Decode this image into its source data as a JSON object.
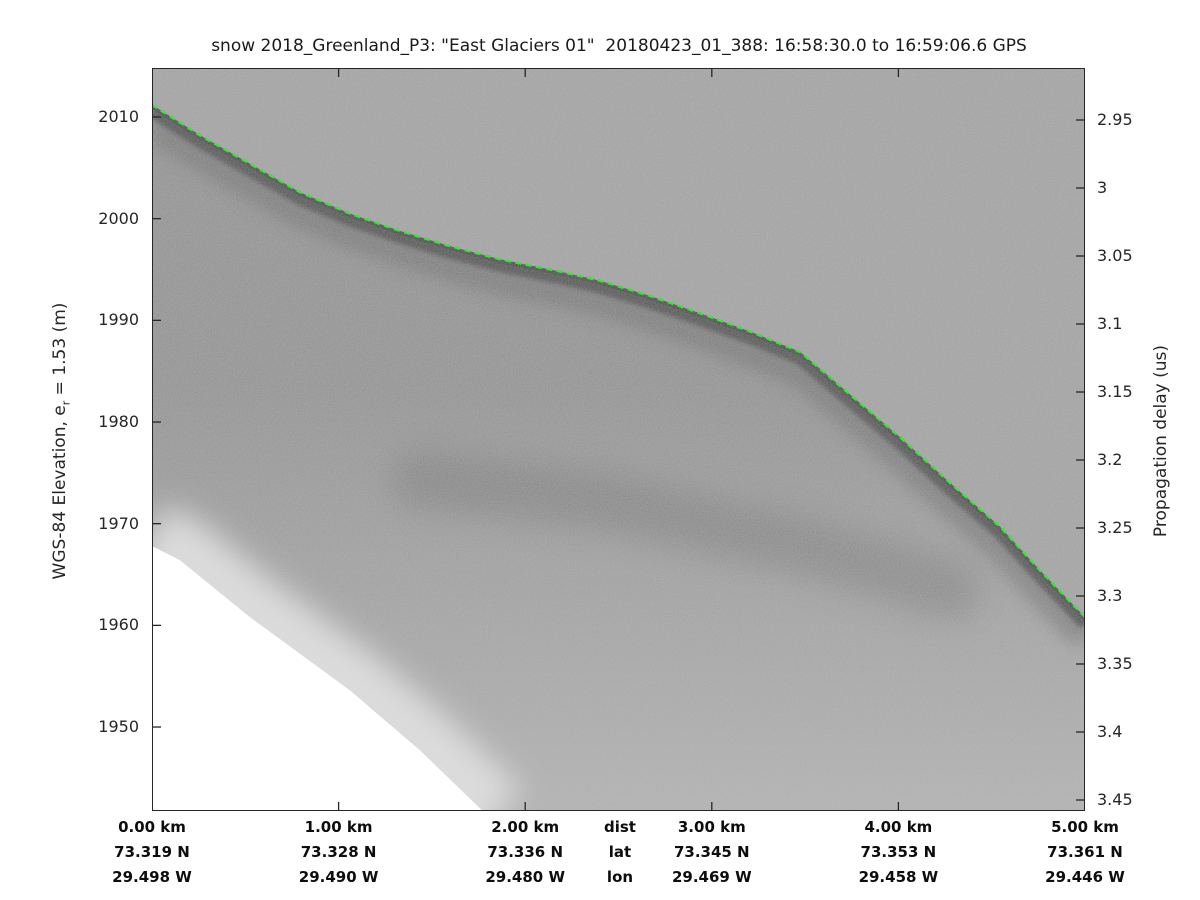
{
  "title": "snow 2018_Greenland_P3: \"East Glaciers 01\"  20180423_01_388: 16:58:30.0 to 16:59:06.6 GPS",
  "left_axis": {
    "label_prefix": "WGS-84 Elevation, e",
    "label_sub": "r",
    "label_suffix": " = 1.53 (m)",
    "ticks": [
      "2010",
      "2000",
      "1990",
      "1980",
      "1970",
      "1960",
      "1950"
    ]
  },
  "right_axis": {
    "label": "Propagation delay (us)",
    "ticks": [
      "2.95",
      "3",
      "3.05",
      "3.1",
      "3.15",
      "3.2",
      "3.25",
      "3.3",
      "3.35",
      "3.4",
      "3.45"
    ]
  },
  "bottom_axis": {
    "row_headers": {
      "dist": "dist",
      "lat": "lat",
      "lon": "lon"
    },
    "columns": [
      {
        "dist": "0.00 km",
        "lat": "73.319 N",
        "lon": "29.498 W"
      },
      {
        "dist": "1.00 km",
        "lat": "73.328 N",
        "lon": "29.490 W"
      },
      {
        "dist": "2.00 km",
        "lat": "73.336 N",
        "lon": "29.480 W"
      },
      {
        "dist": "3.00 km",
        "lat": "73.345 N",
        "lon": "29.469 W"
      },
      {
        "dist": "4.00 km",
        "lat": "73.353 N",
        "lon": "29.458 W"
      },
      {
        "dist": "5.00 km",
        "lat": "73.361 N",
        "lon": "29.446 W"
      }
    ]
  },
  "colors": {
    "surface_pick_green": "#3ce33c",
    "noise_background": "#9d9d9d",
    "subsurface_base": "#8b8b8b",
    "surface_return_dark": "#3d3d3d",
    "no_data_white": "#ffffff",
    "axis_text": "#262626"
  },
  "chart_data": {
    "type": "heatmap",
    "title": "snow 2018_Greenland_P3: \"East Glaciers 01\"  20180423_01_388: 16:58:30.0 to 16:59:06.6 GPS",
    "description": "Grayscale snow-radar echogram; bright green dashed line traces the picked ice surface; dark band below the pick is the surface return; white wedge at lower left is a no-data region.",
    "x_axis": {
      "label": "dist",
      "units": "km",
      "range": [
        0,
        5
      ],
      "ticks": [
        0,
        1,
        2,
        3,
        4,
        5
      ]
    },
    "y_axis_left": {
      "label": "WGS-84 Elevation, e_r = 1.53 (m)",
      "range": [
        1941.7,
        2014.8
      ],
      "ticks": [
        2010,
        2000,
        1990,
        1980,
        1970,
        1960,
        1950
      ]
    },
    "y_axis_right": {
      "label": "Propagation delay (us)",
      "range": [
        2.912,
        3.458
      ],
      "ticks": [
        2.95,
        3,
        3.05,
        3.1,
        3.15,
        3.2,
        3.25,
        3.3,
        3.35,
        3.4,
        3.45
      ]
    },
    "georeference": {
      "km": [
        0,
        1,
        2,
        3,
        4,
        5
      ],
      "lat_deg_n": [
        73.319,
        73.328,
        73.336,
        73.345,
        73.353,
        73.361
      ],
      "lon_deg_w": [
        29.498,
        29.49,
        29.48,
        29.469,
        29.458,
        29.446
      ]
    },
    "surface_pick_profile": {
      "km": [
        0,
        0.257,
        0.525,
        0.793,
        1.061,
        1.329,
        1.597,
        1.865,
        2.186,
        2.401,
        2.669,
        2.937,
        3.205,
        3.473,
        3.741,
        4.009,
        4.277,
        4.545,
        4.759,
        5.0
      ],
      "elevation_m": [
        2011.2,
        2008.2,
        2005.4,
        2002.6,
        2000.5,
        1998.8,
        1997.3,
        1996.0,
        1994.8,
        1993.9,
        1992.4,
        1990.7,
        1988.9,
        1986.9,
        1982.7,
        1978.5,
        1974.0,
        1969.7,
        1965.4,
        1960.8
      ],
      "surface_delay_us_at_km_ticks": [
        2.94,
        3.02,
        3.06,
        3.1,
        3.18,
        3.32
      ]
    },
    "no_data_boundary": {
      "km": [
        0,
        0.15,
        0.525,
        1.061,
        1.436,
        1.758
      ],
      "elevation_m": [
        1968.1,
        1966.4,
        1960.8,
        1953.6,
        1947.7,
        1942.0
      ]
    },
    "internal_band": {
      "km": [
        1.436,
        2.401,
        3.473,
        4.277
      ],
      "elevation_m": [
        1974.3,
        1972.3,
        1967.9,
        1963.5
      ]
    },
    "legend": {
      "visible": false
    }
  }
}
